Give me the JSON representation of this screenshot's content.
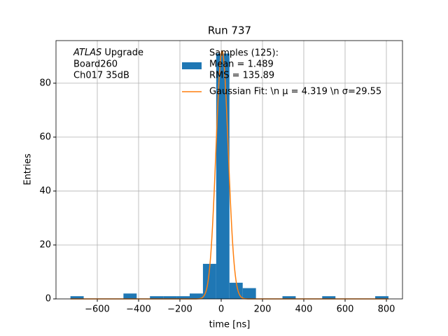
{
  "chart_data": {
    "type": "histogram",
    "title": "Run 737",
    "xlabel": "time [ns]",
    "ylabel": "Entries",
    "annotation_italic": "ATLAS",
    "annotation": [
      " Upgrade",
      " Board260",
      " Ch017 35dB"
    ],
    "bins": [
      -730,
      -665.83,
      -601.67,
      -537.5,
      -473.33,
      -409.17,
      -345,
      -280.83,
      -216.67,
      -152.5,
      -88.33,
      -24.17,
      40,
      104.17,
      168.33,
      232.5,
      296.67,
      360.83,
      425,
      489.17,
      553.33,
      617.5,
      681.67,
      745.83,
      810
    ],
    "counts": [
      1,
      0,
      0,
      0,
      2,
      0,
      1,
      1,
      1,
      2,
      13,
      91,
      6,
      4,
      0,
      0,
      1,
      0,
      0,
      1,
      0,
      0,
      0,
      1
    ],
    "color": "#1f77b4",
    "hist_label": [
      "Samples (125):",
      " Mean = 1.489",
      " RMS = 135.89"
    ],
    "fit": {
      "name": "Gaussian Fit: \\n μ = 4.319 \\n σ=29.55",
      "color": "#ff7f0e",
      "mu": 4.319,
      "sigma": 29.55,
      "peak": 92
    },
    "xlim": [
      -800,
      878
    ],
    "ylim": [
      0,
      95.8
    ],
    "xticks": [
      {
        "value": -600,
        "label": "−600"
      },
      {
        "value": -400,
        "label": "−400"
      },
      {
        "value": -200,
        "label": "−200"
      },
      0,
      200,
      400,
      600,
      800
    ],
    "yticks": [
      0,
      20,
      40,
      60,
      80
    ],
    "grid": true
  }
}
